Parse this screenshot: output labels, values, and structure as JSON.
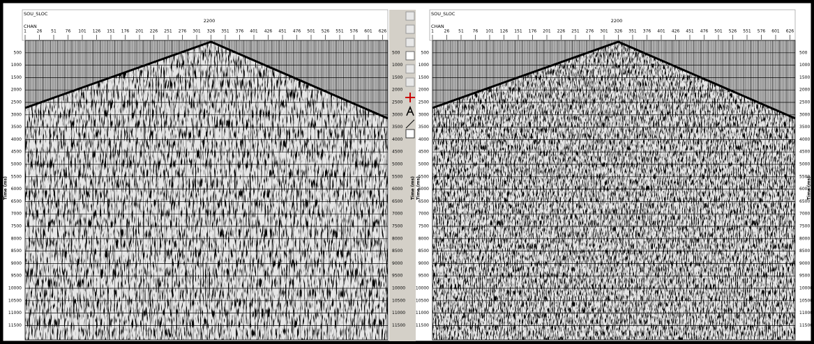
{
  "panels": [
    {
      "header_key": "SOU_SLOC",
      "header_value": "2200",
      "channel_label": "CHAN",
      "channel_ticks": [
        1,
        26,
        51,
        76,
        101,
        126,
        151,
        176,
        201,
        226,
        251,
        276,
        301,
        326,
        351,
        376,
        401,
        426,
        451,
        476,
        501,
        526,
        551,
        576,
        601,
        626
      ],
      "time_ticks": [
        500,
        1000,
        1500,
        2000,
        2500,
        3000,
        3500,
        4000,
        4500,
        5000,
        5500,
        6000,
        6500,
        7000,
        7500,
        8000,
        8500,
        9000,
        9500,
        10000,
        10500,
        11000,
        11500
      ],
      "time_axis_label": "Time (ms)"
    },
    {
      "header_key": "SOU_SLOC",
      "header_value": "2200",
      "channel_label": "CHAN",
      "channel_ticks": [
        1,
        26,
        51,
        76,
        101,
        126,
        151,
        176,
        201,
        226,
        251,
        276,
        301,
        326,
        351,
        376,
        401,
        426,
        451,
        476,
        501,
        526,
        551,
        576,
        601,
        626
      ],
      "time_ticks": [
        500,
        1000,
        1500,
        2000,
        2500,
        3000,
        3500,
        4000,
        4500,
        5000,
        5500,
        6000,
        6500,
        7000,
        7500,
        8000,
        8500,
        9000,
        9500,
        10000,
        10500,
        11000,
        11500
      ],
      "time_axis_label": "Time (ms)"
    }
  ]
}
